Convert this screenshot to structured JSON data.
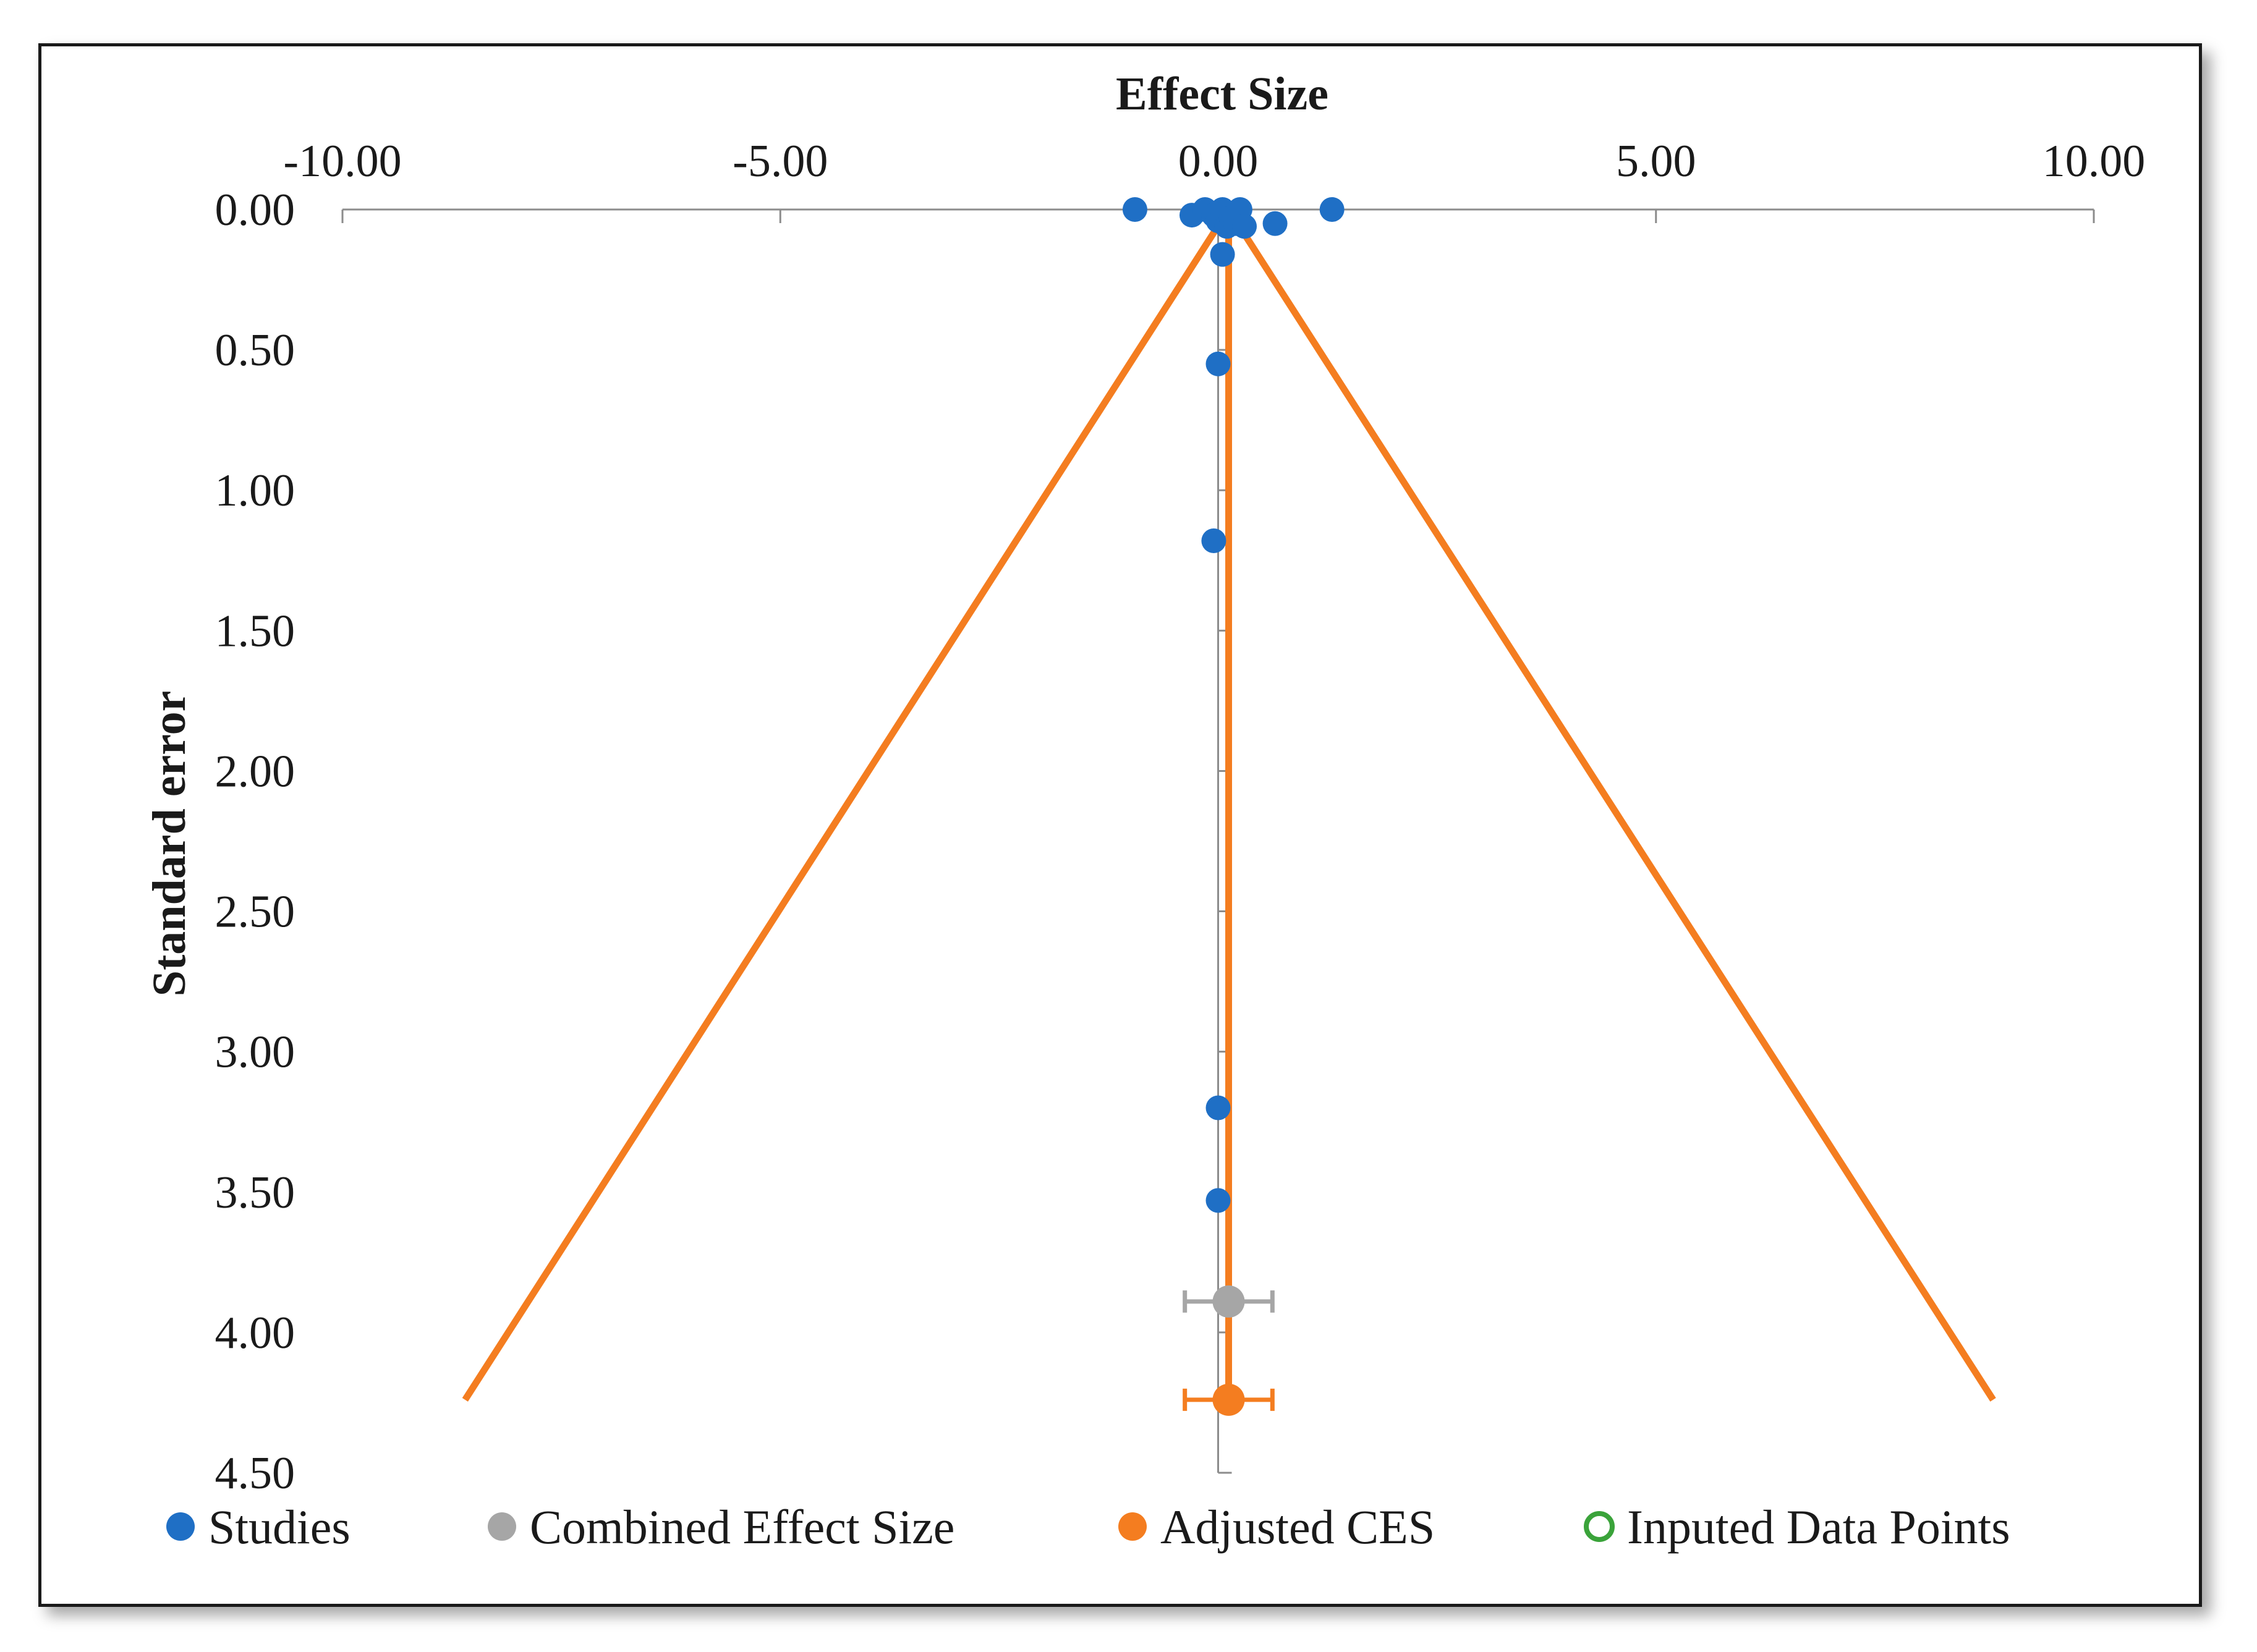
{
  "chart_data": {
    "type": "scatter",
    "title": "",
    "xlabel": "Effect Size",
    "ylabel": "Standard error",
    "xlim": [
      -10,
      10
    ],
    "ylim": [
      0,
      4.5
    ],
    "y_inverted": true,
    "x_axis_position": "top",
    "x_ticks": [
      "-10.00",
      "-5.00",
      "0.00",
      "5.00",
      "10.00"
    ],
    "x_tick_values": [
      -10,
      -5,
      0,
      5,
      10
    ],
    "y_ticks": [
      "0.00",
      "0.50",
      "1.00",
      "1.50",
      "2.00",
      "2.50",
      "3.00",
      "3.50",
      "4.00",
      "4.50"
    ],
    "y_tick_values": [
      0,
      0.5,
      1,
      1.5,
      2,
      2.5,
      3,
      3.5,
      4,
      4.5
    ],
    "grid": false,
    "legend_position": "bottom",
    "colors": {
      "studies": "#1f6fc5",
      "combined": "#a6a6a6",
      "adjusted": "#f47d20",
      "imputed": "#3aa33a",
      "axis": "#8c8c8c"
    },
    "series": [
      {
        "name": "Studies",
        "marker": "filled-circle",
        "points": [
          {
            "x": -0.95,
            "y": 0.0
          },
          {
            "x": -0.3,
            "y": 0.02
          },
          {
            "x": -0.15,
            "y": 0.0
          },
          {
            "x": -0.05,
            "y": 0.02
          },
          {
            "x": 0.0,
            "y": 0.04
          },
          {
            "x": 0.05,
            "y": 0.0
          },
          {
            "x": 0.1,
            "y": 0.06
          },
          {
            "x": 0.15,
            "y": 0.03
          },
          {
            "x": 0.2,
            "y": 0.05
          },
          {
            "x": 0.25,
            "y": 0.0
          },
          {
            "x": 0.3,
            "y": 0.06
          },
          {
            "x": 1.3,
            "y": 0.0
          },
          {
            "x": 0.65,
            "y": 0.05
          },
          {
            "x": 0.05,
            "y": 0.16
          },
          {
            "x": 0.0,
            "y": 0.55
          },
          {
            "x": -0.05,
            "y": 1.18
          },
          {
            "x": 0.0,
            "y": 3.2
          },
          {
            "x": 0.0,
            "y": 3.53
          }
        ]
      },
      {
        "name": "Combined Effect Size",
        "marker": "filled-circle",
        "points": [
          {
            "x": 0.12,
            "y": 3.89,
            "ci": [
              -0.38,
              0.62
            ]
          }
        ]
      },
      {
        "name": "Adjusted CES",
        "marker": "filled-circle",
        "points": [
          {
            "x": 0.12,
            "y": 4.24,
            "ci": [
              -0.38,
              0.62
            ]
          }
        ]
      },
      {
        "name": "Inputed Data Points",
        "marker": "open-circle",
        "points": []
      }
    ],
    "funnel": {
      "center_x": 0.12,
      "apex_y": 0.0,
      "bottom_y": 4.24,
      "left_bottom_x": -8.6,
      "right_bottom_x": 8.85
    },
    "center_line_x": 0.12,
    "legend": [
      {
        "label": "Studies",
        "marker": "filled-circle",
        "color": "#1f6fc5"
      },
      {
        "label": "Combined Effect Size",
        "marker": "filled-circle",
        "color": "#a6a6a6"
      },
      {
        "label": "Adjusted CES",
        "marker": "filled-circle",
        "color": "#f47d20"
      },
      {
        "label": "Inputed Data Points",
        "marker": "open-circle",
        "color": "#3aa33a"
      }
    ]
  }
}
